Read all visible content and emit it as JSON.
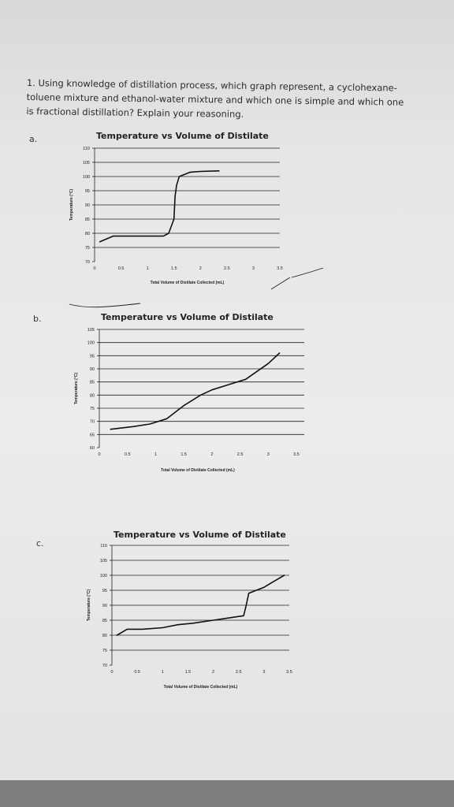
{
  "question": {
    "lines": [
      "1. Using knowledge of distillation process, which graph represent, a cyclohexane-",
      "toluene mixture and ethanol-water mixture and which one is simple and which one",
      "is fractional distillation? Explain your reasoning."
    ]
  },
  "parts": [
    "a.",
    "b.",
    "c."
  ],
  "chart_data": [
    {
      "type": "line",
      "title": "Temperature vs Volume of Distilate",
      "xlabel": "Total Volume of Distilate Collected (mL)",
      "ylabel": "Temperature (°C)",
      "xticks": [
        "0",
        "0.5",
        "1",
        "1.5",
        "2",
        "2.5",
        "3",
        "3.5"
      ],
      "yticks": [
        "70",
        "75",
        "80",
        "85",
        "90",
        "95",
        "100",
        "105",
        "110"
      ],
      "xlim": [
        0,
        3.5
      ],
      "ylim": [
        70,
        110
      ],
      "grid": true,
      "series": [
        {
          "x": [
            0.1,
            0.35,
            1.3,
            1.4,
            1.5,
            1.52,
            1.55,
            1.6,
            1.8,
            2.0,
            2.35
          ],
          "values": [
            77,
            79,
            79,
            80,
            85,
            93,
            97,
            100,
            101.5,
            101.8,
            102
          ]
        }
      ]
    },
    {
      "type": "line",
      "title": "Temperature vs Volume of Distilate",
      "xlabel": "Total Volume of Distilate Collected (mL)",
      "ylabel": "Temperature (°C)",
      "xticks": [
        "0",
        "0.5",
        "1",
        "1.5",
        "2",
        "2.5",
        "3",
        "3.5"
      ],
      "yticks": [
        "60",
        "65",
        "70",
        "75",
        "80",
        "85",
        "90",
        "95",
        "100",
        "105"
      ],
      "xlim": [
        0,
        3.5
      ],
      "ylim": [
        60,
        105
      ],
      "grid": true,
      "series": [
        {
          "x": [
            0.2,
            0.6,
            0.9,
            1.2,
            1.5,
            1.8,
            2.0,
            2.3,
            2.6,
            2.8,
            3.0,
            3.2
          ],
          "values": [
            67,
            68,
            69,
            71,
            76,
            80,
            82,
            84,
            86,
            89,
            92,
            96
          ]
        }
      ]
    },
    {
      "type": "line",
      "title": "Temperature vs Volume of Distilate",
      "xlabel": "Total Volume of Distilate Collected (mL)",
      "ylabel": "Temperature (°C)",
      "xticks": [
        "0",
        "0.5",
        "1",
        "1.5",
        "2",
        "2.5",
        "3",
        "3.5"
      ],
      "yticks": [
        "70",
        "75",
        "80",
        "85",
        "90",
        "95",
        "100",
        "105",
        "110"
      ],
      "xlim": [
        0,
        3.5
      ],
      "ylim": [
        70,
        110
      ],
      "grid": true,
      "series": [
        {
          "x": [
            0.1,
            0.3,
            0.6,
            1.0,
            1.3,
            1.6,
            2.0,
            2.4,
            2.6,
            2.65,
            2.7,
            3.0,
            3.2,
            3.4
          ],
          "values": [
            80,
            82,
            82,
            82.5,
            83.5,
            84,
            85,
            86,
            86.5,
            90,
            94,
            96,
            98,
            100
          ]
        }
      ]
    }
  ]
}
